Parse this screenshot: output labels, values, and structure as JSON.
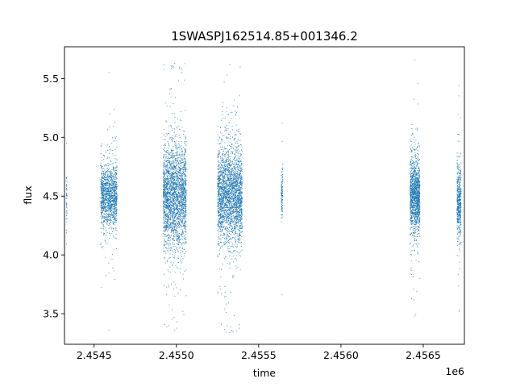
{
  "chart_data": {
    "type": "scatter",
    "title": "1SWASPJ162514.85+001346.2",
    "xlabel": "time",
    "ylabel": "flux",
    "x_offset_label": "1e6",
    "xlim": [
      2454320,
      2456750
    ],
    "ylim": [
      3.24,
      5.77
    ],
    "x_ticks": [
      {
        "value": 2454500,
        "label": "2.4545"
      },
      {
        "value": 2455000,
        "label": "2.4550"
      },
      {
        "value": 2455500,
        "label": "2.4555"
      },
      {
        "value": 2456000,
        "label": "2.4560"
      },
      {
        "value": 2456500,
        "label": "2.4565"
      }
    ],
    "y_ticks": [
      {
        "value": 3.5,
        "label": "3.5"
      },
      {
        "value": 4.0,
        "label": "4.0"
      },
      {
        "value": 4.5,
        "label": "4.5"
      },
      {
        "value": 5.0,
        "label": "5.0"
      },
      {
        "value": 5.5,
        "label": "5.5"
      }
    ],
    "grid": false,
    "marker_color": "#1f77b4",
    "series": [
      {
        "observing_seasons": [
          {
            "x_start": 2454330,
            "x_end": 2454336,
            "y_center": 4.5,
            "y_spread": 0.12,
            "y_min": 4.09,
            "y_max": 4.95,
            "points": 40
          },
          {
            "x_start": 2454540,
            "x_end": 2454640,
            "y_center": 4.5,
            "y_spread": 0.13,
            "y_min": 3.36,
            "y_max": 5.55,
            "points": 1400
          },
          {
            "x_start": 2454920,
            "x_end": 2455060,
            "y_center": 4.5,
            "y_spread": 0.22,
            "y_min": 3.36,
            "y_max": 5.63,
            "points": 2600
          },
          {
            "x_start": 2455250,
            "x_end": 2455400,
            "y_center": 4.5,
            "y_spread": 0.2,
            "y_min": 3.34,
            "y_max": 5.62,
            "points": 2600
          },
          {
            "x_start": 2455637,
            "x_end": 2455647,
            "y_center": 4.52,
            "y_spread": 0.1,
            "y_min": 3.66,
            "y_max": 5.12,
            "points": 120
          },
          {
            "x_start": 2456420,
            "x_end": 2456480,
            "y_center": 4.5,
            "y_spread": 0.16,
            "y_min": 3.48,
            "y_max": 5.66,
            "points": 1400
          },
          {
            "x_start": 2456705,
            "x_end": 2456730,
            "y_center": 4.45,
            "y_spread": 0.15,
            "y_min": 3.52,
            "y_max": 5.44,
            "points": 500
          }
        ]
      }
    ]
  }
}
